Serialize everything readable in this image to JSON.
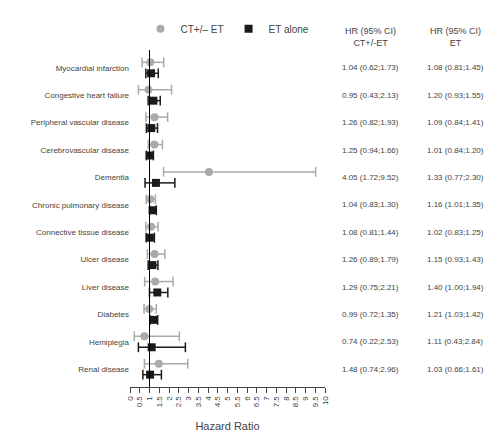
{
  "chart_data": {
    "type": "forest",
    "x_label": "Hazard Ratio",
    "categories": [
      "Myocardial infarction",
      "Congestive heart failure",
      "Peripheral vascular disease",
      "Cerebrovascular disease",
      "Dementia",
      "Chronic pulmonary disease",
      "Connective tissue disease",
      "Ulcer disease",
      "Liver disease",
      "Diabetes",
      "Hemiplegia",
      "Renal disease"
    ],
    "series": [
      {
        "name": "CT+/– ET",
        "color": "#aaaaaa",
        "marker": "circle",
        "column_header": [
          "HR (95% CI)",
          "CT+/-ET"
        ],
        "values": [
          1.04,
          0.95,
          1.26,
          1.25,
          4.05,
          1.04,
          1.08,
          1.26,
          1.29,
          0.99,
          0.74,
          1.48
        ],
        "ci_low": [
          0.62,
          0.43,
          0.82,
          0.94,
          1.72,
          0.83,
          0.81,
          0.89,
          0.75,
          0.72,
          0.22,
          0.74
        ],
        "ci_high": [
          1.73,
          2.13,
          1.93,
          1.66,
          9.52,
          1.3,
          1.44,
          1.79,
          2.21,
          1.35,
          2.53,
          2.96
        ],
        "value_labels": [
          "1.04 (0.62;1.73)",
          "0.95 (0.43;2.13)",
          "1.26 (0.82;1.93)",
          "1.25 (0.94;1.66)",
          "4.05 (1.72;9.52)",
          "1.04 (0.83;1.30)",
          "1.08 (0.81;1.44)",
          "1.26 (0.89;1.79)",
          "1.29 (0.75;2.21)",
          "0.99 (0.72;1.35)",
          "0.74 (0.22;2.53)",
          "1.48 (0.74;2.96)"
        ]
      },
      {
        "name": "ET alone",
        "color": "#1a1a1a",
        "marker": "square",
        "column_header": [
          "HR (95% CI)",
          "ET"
        ],
        "values": [
          1.08,
          1.2,
          1.09,
          1.01,
          1.33,
          1.16,
          1.02,
          1.15,
          1.4,
          1.21,
          1.11,
          1.03
        ],
        "ci_low": [
          0.81,
          0.93,
          0.84,
          0.84,
          0.77,
          1.01,
          0.83,
          0.93,
          1.0,
          1.03,
          0.43,
          0.66
        ],
        "ci_high": [
          1.45,
          1.55,
          1.41,
          1.2,
          2.3,
          1.35,
          1.25,
          1.43,
          1.94,
          1.42,
          2.84,
          1.61
        ],
        "value_labels": [
          "1.08 (0.81;1.45)",
          "1.20 (0.93;1.55)",
          "1.09 (0.84;1.41)",
          "1.01 (0.84;1.20)",
          "1.33 (0.77;2.30)",
          "1.16 (1.01;1.35)",
          "1.02 (0.83;1.25)",
          "1.15 (0.93;1.43)",
          "1.40 (1.00;1.94)",
          "1.21 (1.03;1.42)",
          "1.11 (0.43;2.84)",
          "1.03 (0.66;1.61)"
        ]
      }
    ],
    "reference_line": {
      "x": 1
    },
    "xlim": [
      0,
      10
    ],
    "xticks": [
      0,
      0.5,
      1,
      1.5,
      2,
      2.5,
      3,
      3.5,
      4,
      4.5,
      5,
      5.5,
      6,
      6.5,
      7,
      7.5,
      8,
      8.5,
      9,
      9.5,
      10
    ],
    "grid": false,
    "legend": "top"
  }
}
